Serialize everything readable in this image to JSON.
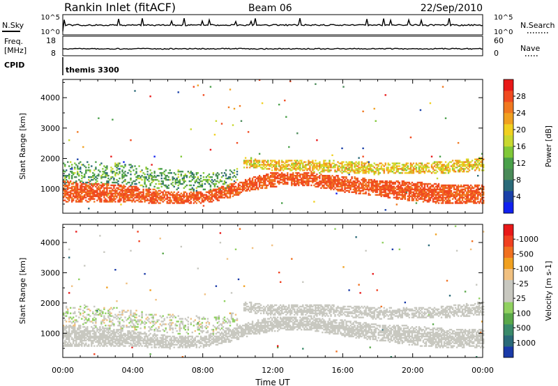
{
  "header": {
    "station": "Rankin Inlet (fitACF)",
    "beam": "Beam 06",
    "date": "22/Sep/2010"
  },
  "strips": {
    "nsky": {
      "label": "N.Sky",
      "ticks": [
        "10^5",
        "10^0"
      ],
      "right_label": "N.Search",
      "right_ticks": [
        "10^5",
        "10^0"
      ],
      "right_style": "dotted"
    },
    "freq": {
      "label_lines": [
        "Freq.",
        "[MHz]"
      ],
      "ticks": [
        "18",
        "8"
      ],
      "right_label": "Nave",
      "right_ticks": [
        "60",
        "0"
      ],
      "right_style": "dotted",
      "value_mhz": 12
    },
    "cpid": {
      "label": "CPID",
      "program": "themis 3300"
    }
  },
  "chart_data": [
    {
      "type": "heatmap",
      "panel": "power",
      "title": "",
      "ylabel": "Slant Range [km]",
      "ylim": [
        200,
        4600
      ],
      "yticks": [
        "1000",
        "2000",
        "3000",
        "4000"
      ],
      "xlabel": "",
      "xlim_hours": [
        0,
        24
      ],
      "colorbar": {
        "label": "Power [dB]",
        "ticks": [
          "4",
          "8",
          "12",
          "16",
          "20",
          "24",
          "28"
        ],
        "range": [
          0,
          30
        ],
        "colors": [
          "#1020f0",
          "#1a40a8",
          "#2a6a78",
          "#4a8a58",
          "#4aa04a",
          "#80c838",
          "#c8d830",
          "#f0d020",
          "#f0a020",
          "#f07820",
          "#f04a20",
          "#e81818"
        ]
      },
      "bands": [
        {
          "name": "near",
          "points": [
            [
              0,
              900,
              700
            ],
            [
              2,
              850,
              650
            ],
            [
              4,
              800,
              550
            ],
            [
              6,
              700,
              400
            ],
            [
              8,
              700,
              400
            ],
            [
              9.5,
              900,
              450
            ],
            [
              10.5,
              1100,
              450
            ],
            [
              12,
              1300,
              500
            ],
            [
              14,
              1300,
              450
            ],
            [
              16,
              1150,
              550
            ],
            [
              18,
              1000,
              550
            ],
            [
              20,
              900,
              650
            ],
            [
              22,
              800,
              650
            ],
            [
              24,
              800,
              650
            ]
          ],
          "values": [
            24,
            27
          ],
          "fill": 0.85
        },
        {
          "name": "far",
          "points": [
            [
              10.3,
              1850,
              350
            ],
            [
              12,
              1750,
              350
            ],
            [
              14,
              1750,
              400
            ],
            [
              16,
              1700,
              400
            ],
            [
              18,
              1650,
              400
            ],
            [
              20,
              1650,
              350
            ],
            [
              22,
              1700,
              400
            ],
            [
              24,
              1800,
              450
            ]
          ],
          "values": [
            14,
            24
          ],
          "fill": 0.75
        },
        {
          "name": "low-cloud",
          "points": [
            [
              0,
              1500,
              800
            ],
            [
              3,
              1500,
              700
            ],
            [
              5,
              1350,
              650
            ],
            [
              7,
              1250,
              650
            ],
            [
              8.5,
              1200,
              600
            ],
            [
              10,
              1400,
              600
            ]
          ],
          "values": [
            6,
            16
          ],
          "fill": 0.35
        }
      ]
    },
    {
      "type": "heatmap",
      "panel": "velocity",
      "title": "",
      "ylabel": "Slant Range [km]",
      "ylim": [
        200,
        4600
      ],
      "yticks": [
        "1000",
        "2000",
        "3000",
        "4000"
      ],
      "xlabel": "Time UT",
      "xticks": [
        "00:00",
        "04:00",
        "08:00",
        "12:00",
        "16:00",
        "20:00",
        "00:00"
      ],
      "xlim_hours": [
        0,
        24
      ],
      "colorbar": {
        "label": "Velocity [m s-1]",
        "ticks": [
          "1000",
          "500",
          "100",
          "25",
          "-25",
          "-100",
          "-500",
          "-1000"
        ],
        "range": [
          1200,
          -1200
        ],
        "colors": [
          "#1a3aa8",
          "#2a6a78",
          "#3a8a6a",
          "#5aa84a",
          "#90d060",
          "#c8c8c0",
          "#c8c8c0",
          "#f0c080",
          "#f0a020",
          "#f07020",
          "#f04020",
          "#e81818"
        ]
      },
      "bands": [
        {
          "name": "near",
          "points": [
            [
              0,
              900,
              700
            ],
            [
              2,
              850,
              650
            ],
            [
              4,
              800,
              550
            ],
            [
              6,
              700,
              400
            ],
            [
              8,
              700,
              400
            ],
            [
              9.5,
              900,
              450
            ],
            [
              10.5,
              1100,
              450
            ],
            [
              12,
              1300,
              500
            ],
            [
              14,
              1300,
              450
            ],
            [
              16,
              1150,
              550
            ],
            [
              18,
              1000,
              550
            ],
            [
              20,
              900,
              650
            ],
            [
              22,
              800,
              650
            ],
            [
              24,
              800,
              650
            ]
          ],
          "values": [
            -200,
            120
          ],
          "fill": 0.85
        },
        {
          "name": "far",
          "points": [
            [
              10.3,
              1850,
              350
            ],
            [
              12,
              1750,
              350
            ],
            [
              14,
              1750,
              400
            ],
            [
              16,
              1700,
              400
            ],
            [
              18,
              1650,
              400
            ],
            [
              20,
              1650,
              350
            ],
            [
              22,
              1700,
              400
            ],
            [
              24,
              1800,
              450
            ]
          ],
          "values": [
            -20,
            20
          ],
          "fill": 0.75
        },
        {
          "name": "low-cloud",
          "points": [
            [
              0,
              1500,
              800
            ],
            [
              3,
              1500,
              700
            ],
            [
              5,
              1350,
              650
            ],
            [
              7,
              1250,
              650
            ],
            [
              8.5,
              1200,
              600
            ],
            [
              10,
              1400,
              600
            ]
          ],
          "values": [
            -300,
            400
          ],
          "fill": 0.35
        }
      ]
    }
  ]
}
